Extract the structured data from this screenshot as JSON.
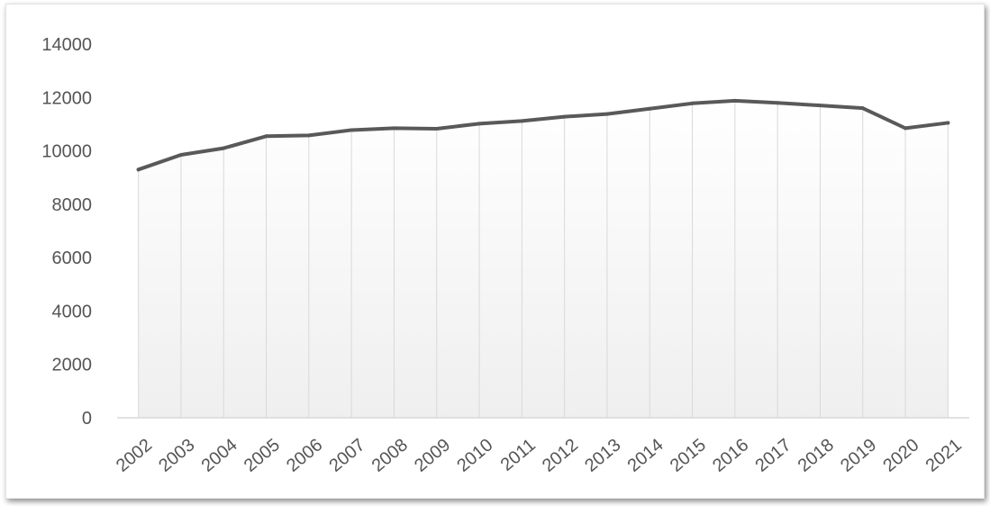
{
  "chart_data": {
    "type": "area",
    "title": "",
    "xlabel": "",
    "ylabel": "",
    "x": [
      "2002",
      "2003",
      "2004",
      "2005",
      "2006",
      "2007",
      "2008",
      "2009",
      "2010",
      "2011",
      "2012",
      "2013",
      "2014",
      "2015",
      "2016",
      "2017",
      "2018",
      "2019",
      "2020",
      "2021"
    ],
    "series": [
      {
        "values": [
          9300,
          9850,
          10100,
          10550,
          10580,
          10780,
          10850,
          10830,
          11020,
          11120,
          11280,
          11380,
          11580,
          11780,
          11880,
          11800,
          11700,
          11600,
          10850,
          11050
        ],
        "color": "#595959"
      }
    ],
    "ylim": [
      0,
      14000
    ],
    "yticks": [
      0,
      2000,
      4000,
      6000,
      8000,
      10000,
      12000,
      14000
    ],
    "grid": "vertical-category-lines",
    "legend": "none",
    "colors": {
      "line": "#595959",
      "fill_top": "#ffffff",
      "fill_bottom": "#f0f0f0",
      "gridline": "#d9d9d9",
      "axis": "#d9d9d9",
      "text": "#555555"
    }
  }
}
